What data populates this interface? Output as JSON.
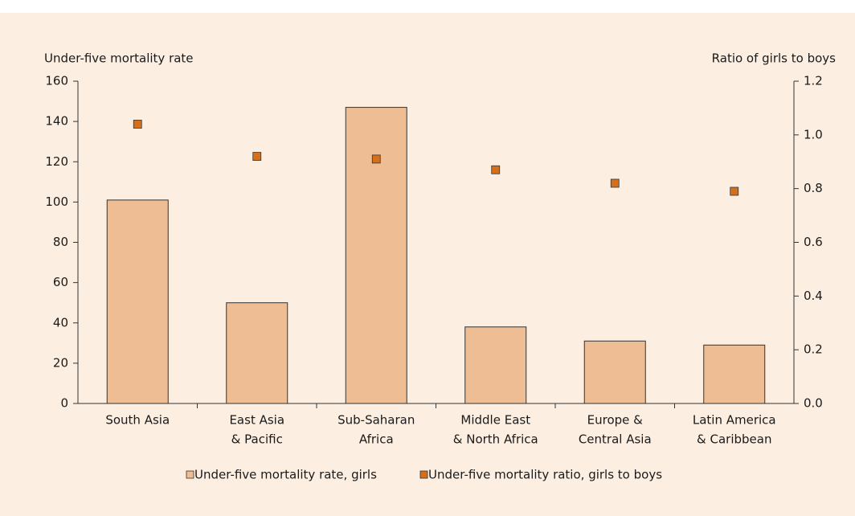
{
  "chart_data": {
    "type": "bar",
    "y_label": "Under-five mortality rate",
    "y2_label": "Ratio of girls to boys",
    "categories": [
      [
        "South Asia"
      ],
      [
        "East Asia",
        "& Pacific"
      ],
      [
        "Sub-Saharan",
        "Africa"
      ],
      [
        "Middle East",
        "& North Africa"
      ],
      [
        "Europe &",
        "Central Asia"
      ],
      [
        "Latin America",
        "& Caribbean"
      ]
    ],
    "series": [
      {
        "name": "Under-five mortality rate, girls",
        "type": "bar",
        "color": "#efbd94",
        "values": [
          101,
          50,
          147,
          38,
          31,
          29
        ]
      },
      {
        "name": "Under-five mortality ratio, girls to boys",
        "type": "scatter",
        "axis": "y2",
        "color": "#d4701c",
        "values": [
          1.04,
          0.92,
          0.91,
          0.87,
          0.82,
          0.79
        ]
      }
    ],
    "ylim": [
      0,
      160
    ],
    "yticks": [
      0,
      20,
      40,
      60,
      80,
      100,
      120,
      140,
      160
    ],
    "y2lim": [
      0,
      1.2
    ],
    "y2ticks": [
      {
        "value": 0,
        "label": "0.0"
      },
      0.2,
      0.4,
      0.6,
      0.8,
      {
        "value": 1,
        "label": "1.0"
      },
      1.2
    ]
  }
}
